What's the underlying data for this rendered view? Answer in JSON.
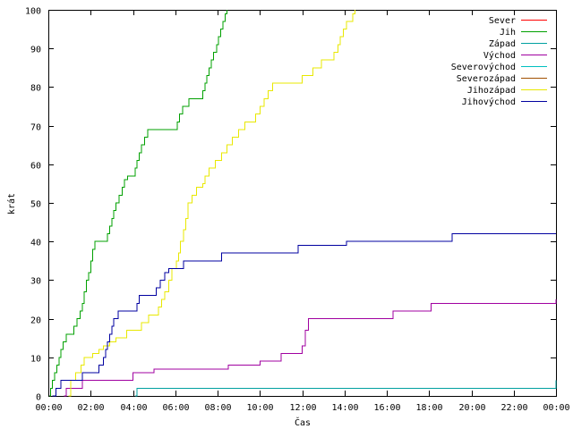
{
  "chart_data": {
    "type": "line",
    "xlabel": "Čas",
    "ylabel": "krát",
    "xlim": [
      0,
      24
    ],
    "ylim": [
      0,
      100
    ],
    "x_unit": "hours",
    "x_ticks": [
      "00:00",
      "02:00",
      "04:00",
      "06:00",
      "08:00",
      "10:00",
      "12:00",
      "14:00",
      "16:00",
      "18:00",
      "20:00",
      "22:00",
      "00:00"
    ],
    "y_ticks": [
      "0",
      "10",
      "20",
      "30",
      "40",
      "50",
      "60",
      "70",
      "80",
      "90",
      "100"
    ],
    "grid": false,
    "legend_position": "top-right",
    "series": [
      {
        "name": "Sever",
        "color": "#ff0000",
        "points": []
      },
      {
        "name": "Jih",
        "color": "#00a000",
        "points": [
          [
            0.05,
            0
          ],
          [
            0.1,
            2
          ],
          [
            0.2,
            4
          ],
          [
            0.3,
            6
          ],
          [
            0.4,
            8
          ],
          [
            0.5,
            10
          ],
          [
            0.6,
            12
          ],
          [
            0.7,
            14
          ],
          [
            0.85,
            16
          ],
          [
            1.2,
            18
          ],
          [
            1.35,
            20
          ],
          [
            1.5,
            22
          ],
          [
            1.6,
            24
          ],
          [
            1.7,
            27
          ],
          [
            1.8,
            30
          ],
          [
            1.9,
            32
          ],
          [
            2.0,
            35
          ],
          [
            2.1,
            38
          ],
          [
            2.2,
            40
          ],
          [
            2.8,
            42
          ],
          [
            2.9,
            44
          ],
          [
            3.0,
            46
          ],
          [
            3.1,
            48
          ],
          [
            3.2,
            50
          ],
          [
            3.35,
            52
          ],
          [
            3.5,
            54
          ],
          [
            3.6,
            56
          ],
          [
            3.75,
            57
          ],
          [
            4.1,
            59
          ],
          [
            4.2,
            61
          ],
          [
            4.3,
            63
          ],
          [
            4.4,
            65
          ],
          [
            4.55,
            67
          ],
          [
            4.7,
            69
          ],
          [
            6.1,
            71
          ],
          [
            6.2,
            73
          ],
          [
            6.35,
            75
          ],
          [
            6.65,
            77
          ],
          [
            7.3,
            79
          ],
          [
            7.4,
            81
          ],
          [
            7.5,
            83
          ],
          [
            7.6,
            85
          ],
          [
            7.7,
            87
          ],
          [
            7.8,
            89
          ],
          [
            7.95,
            91
          ],
          [
            8.05,
            93
          ],
          [
            8.15,
            95
          ],
          [
            8.25,
            97
          ],
          [
            8.35,
            99
          ],
          [
            8.45,
            100
          ]
        ]
      },
      {
        "name": "Západ",
        "color": "#00a0a0",
        "points": [
          [
            4.1,
            0
          ],
          [
            4.2,
            2
          ],
          [
            6.25,
            2
          ],
          [
            6.35,
            2
          ],
          [
            23.9,
            2
          ],
          [
            24,
            4
          ]
        ]
      },
      {
        "name": "Východ",
        "color": "#a000a0",
        "points": [
          [
            0.75,
            0
          ],
          [
            0.85,
            2
          ],
          [
            1.5,
            2
          ],
          [
            1.6,
            4
          ],
          [
            3.8,
            4
          ],
          [
            4.0,
            6
          ],
          [
            5.0,
            7
          ],
          [
            8.5,
            8
          ],
          [
            10.0,
            9
          ],
          [
            11.0,
            11
          ],
          [
            12.0,
            13
          ],
          [
            12.15,
            17
          ],
          [
            12.3,
            20
          ],
          [
            16.3,
            22
          ],
          [
            18.1,
            24
          ],
          [
            23.9,
            24
          ],
          [
            24,
            25
          ]
        ]
      },
      {
        "name": "Severovýchod",
        "color": "#00c0c0",
        "points": []
      },
      {
        "name": "Severozápad",
        "color": "#a05000",
        "points": []
      },
      {
        "name": "Jihozápad",
        "color": "#e8e800",
        "points": [
          [
            0.95,
            0
          ],
          [
            1.05,
            4
          ],
          [
            1.3,
            6
          ],
          [
            1.55,
            8
          ],
          [
            1.7,
            10
          ],
          [
            2.1,
            11
          ],
          [
            2.4,
            12
          ],
          [
            2.6,
            13
          ],
          [
            2.9,
            14
          ],
          [
            3.2,
            15
          ],
          [
            3.7,
            17
          ],
          [
            4.4,
            19
          ],
          [
            4.75,
            21
          ],
          [
            5.2,
            23
          ],
          [
            5.35,
            25
          ],
          [
            5.5,
            27
          ],
          [
            5.7,
            30
          ],
          [
            5.85,
            33
          ],
          [
            6.05,
            35
          ],
          [
            6.15,
            37
          ],
          [
            6.25,
            40
          ],
          [
            6.4,
            43
          ],
          [
            6.5,
            46
          ],
          [
            6.6,
            50
          ],
          [
            6.8,
            52
          ],
          [
            7.0,
            54
          ],
          [
            7.3,
            55
          ],
          [
            7.4,
            57
          ],
          [
            7.6,
            59
          ],
          [
            7.9,
            61
          ],
          [
            8.2,
            63
          ],
          [
            8.45,
            65
          ],
          [
            8.7,
            67
          ],
          [
            9.0,
            69
          ],
          [
            9.3,
            71
          ],
          [
            9.8,
            73
          ],
          [
            10.0,
            75
          ],
          [
            10.2,
            77
          ],
          [
            10.4,
            79
          ],
          [
            10.6,
            81
          ],
          [
            12.0,
            83
          ],
          [
            12.5,
            85
          ],
          [
            12.9,
            87
          ],
          [
            13.5,
            89
          ],
          [
            13.7,
            91
          ],
          [
            13.8,
            93
          ],
          [
            13.95,
            95
          ],
          [
            14.1,
            97
          ],
          [
            14.4,
            99
          ],
          [
            14.5,
            100
          ]
        ]
      },
      {
        "name": "Jihovýchod",
        "color": "#0000a0",
        "points": [
          [
            0.2,
            0
          ],
          [
            0.35,
            2
          ],
          [
            0.6,
            4
          ],
          [
            1.6,
            6
          ],
          [
            2.4,
            8
          ],
          [
            2.6,
            10
          ],
          [
            2.7,
            12
          ],
          [
            2.8,
            14
          ],
          [
            2.9,
            16
          ],
          [
            3.0,
            18
          ],
          [
            3.1,
            20
          ],
          [
            3.3,
            22
          ],
          [
            4.2,
            24
          ],
          [
            4.3,
            26
          ],
          [
            5.1,
            28
          ],
          [
            5.3,
            30
          ],
          [
            5.5,
            32
          ],
          [
            5.7,
            33
          ],
          [
            6.4,
            35
          ],
          [
            8.2,
            37
          ],
          [
            11.8,
            39
          ],
          [
            14.1,
            40
          ],
          [
            19.1,
            42
          ],
          [
            24,
            42
          ]
        ]
      }
    ]
  }
}
